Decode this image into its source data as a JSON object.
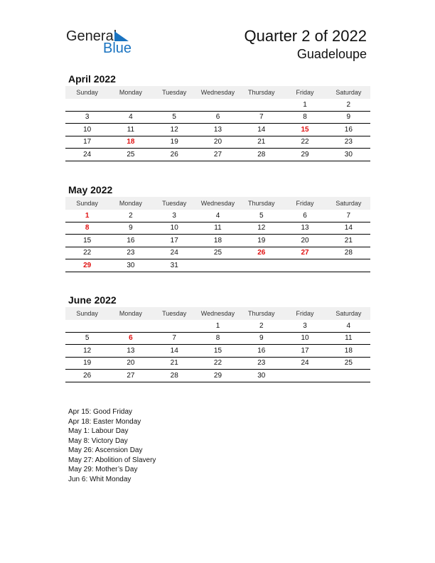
{
  "logo": {
    "text_general": "General",
    "text_blue": "Blue",
    "brand_color": "#1a73c0"
  },
  "header": {
    "title": "Quarter 2 of 2022",
    "region": "Guadeloupe"
  },
  "weekdays": [
    "Sunday",
    "Monday",
    "Tuesday",
    "Wednesday",
    "Thursday",
    "Friday",
    "Saturday"
  ],
  "holiday_color": "#e01010",
  "months": [
    {
      "title": "April 2022",
      "weeks": [
        [
          "",
          "",
          "",
          "",
          "",
          "1",
          "2"
        ],
        [
          "3",
          "4",
          "5",
          "6",
          "7",
          "8",
          "9"
        ],
        [
          "10",
          "11",
          "12",
          "13",
          "14",
          "15",
          "16"
        ],
        [
          "17",
          "18",
          "19",
          "20",
          "21",
          "22",
          "23"
        ],
        [
          "24",
          "25",
          "26",
          "27",
          "28",
          "29",
          "30"
        ]
      ],
      "holidays": [
        "15",
        "18"
      ]
    },
    {
      "title": "May 2022",
      "weeks": [
        [
          "1",
          "2",
          "3",
          "4",
          "5",
          "6",
          "7"
        ],
        [
          "8",
          "9",
          "10",
          "11",
          "12",
          "13",
          "14"
        ],
        [
          "15",
          "16",
          "17",
          "18",
          "19",
          "20",
          "21"
        ],
        [
          "22",
          "23",
          "24",
          "25",
          "26",
          "27",
          "28"
        ],
        [
          "29",
          "30",
          "31",
          "",
          "",
          "",
          ""
        ]
      ],
      "holidays": [
        "1",
        "8",
        "26",
        "27",
        "29"
      ]
    },
    {
      "title": "June 2022",
      "weeks": [
        [
          "",
          "",
          "",
          "1",
          "2",
          "3",
          "4"
        ],
        [
          "5",
          "6",
          "7",
          "8",
          "9",
          "10",
          "11"
        ],
        [
          "12",
          "13",
          "14",
          "15",
          "16",
          "17",
          "18"
        ],
        [
          "19",
          "20",
          "21",
          "22",
          "23",
          "24",
          "25"
        ],
        [
          "26",
          "27",
          "28",
          "29",
          "30",
          "",
          ""
        ]
      ],
      "holidays": [
        "6"
      ]
    }
  ],
  "holiday_list": [
    "Apr 15: Good Friday",
    "Apr 18: Easter Monday",
    "May 1: Labour Day",
    "May 8: Victory Day",
    "May 26: Ascension Day",
    "May 27: Abolition of Slavery",
    "May 29: Mother’s Day",
    "Jun 6: Whit Monday"
  ]
}
